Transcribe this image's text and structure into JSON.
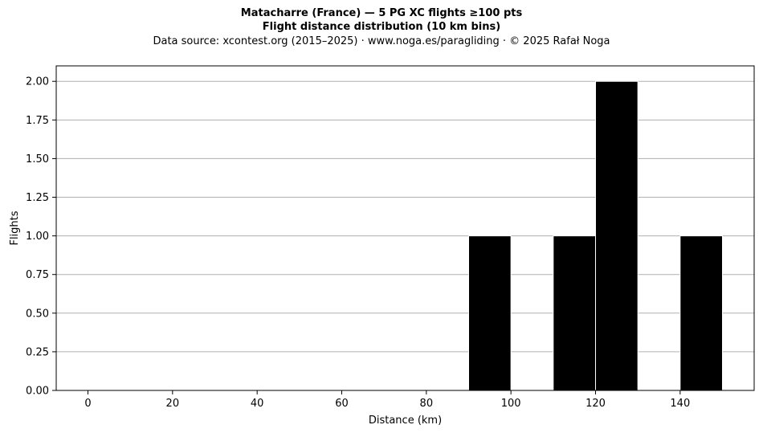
{
  "chart_data": {
    "type": "bar",
    "title": "Matacharre (France)  —  5 PG XC flights ≥100 pts",
    "title_line2": "Flight distance distribution (10 km bins)",
    "subtitle": "Data source: xcontest.org (2015–2025)  ·  www.noga.es/paragliding  ·  © 2025 Rafał Noga",
    "xlabel": "Distance (km)",
    "ylabel": "Flights",
    "xlim": [
      -7.5,
      157.5
    ],
    "ylim": [
      0,
      2.1
    ],
    "x_ticks": [
      0,
      20,
      40,
      60,
      80,
      100,
      120,
      140
    ],
    "x_tick_labels": [
      "0",
      "20",
      "40",
      "60",
      "80",
      "100",
      "120",
      "140"
    ],
    "y_ticks": [
      0,
      0.25,
      0.5,
      0.75,
      1.0,
      1.25,
      1.5,
      1.75,
      2.0
    ],
    "y_tick_labels": [
      "0.00",
      "0.25",
      "0.50",
      "0.75",
      "1.00",
      "1.25",
      "1.50",
      "1.75",
      "2.00"
    ],
    "grid": "y-major",
    "bar_color": "#000000",
    "edge_color": "#ffffff",
    "grid_color": "#b0b0b0",
    "bins": [
      {
        "start": 90,
        "end": 100,
        "count": 1
      },
      {
        "start": 110,
        "end": 120,
        "count": 1
      },
      {
        "start": 120,
        "end": 130,
        "count": 2
      },
      {
        "start": 140,
        "end": 150,
        "count": 1
      }
    ]
  }
}
